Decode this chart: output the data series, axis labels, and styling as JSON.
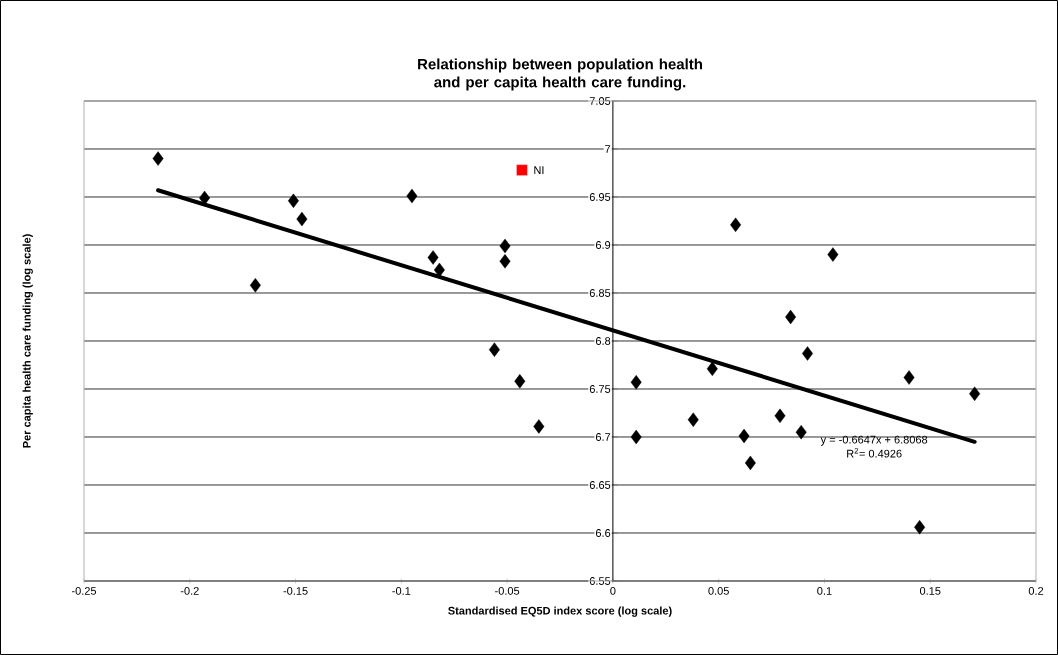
{
  "chart_data": {
    "type": "scatter",
    "title": "Relationship between population health and per capita health care funding.",
    "xlabel": "Standardised EQ5D index score (log scale)",
    "ylabel": "Per capita health care funding (log scale)",
    "xlim": [
      -0.25,
      0.2
    ],
    "xticks": [
      -0.25,
      -0.2,
      -0.15,
      -0.1,
      -0.05,
      0,
      0.05,
      0.1,
      0.15,
      0.2
    ],
    "ylim": [
      6.55,
      7.05
    ],
    "yticks": [
      6.55,
      6.6,
      6.65,
      6.7,
      6.75,
      6.8,
      6.85,
      6.9,
      6.95,
      7,
      7.05
    ],
    "grid": "y",
    "legend": false,
    "annotations": [
      "y = -0.6647x + 6.8068",
      "R$^{2}$= 0.4926"
    ],
    "series": [
      {
        "marker": "diamond",
        "color": "#000000",
        "x": [
          -0.215,
          -0.193,
          -0.169,
          -0.151,
          -0.147,
          -0.095,
          -0.085,
          -0.082,
          -0.056,
          -0.051,
          -0.051,
          -0.044,
          -0.035,
          0.011,
          0.011,
          0.038,
          0.047,
          0.058,
          0.062,
          0.065,
          0.079,
          0.084,
          0.089,
          0.092,
          0.104,
          0.14,
          0.145,
          0.171
        ],
        "values": [
          6.99,
          6.949,
          6.858,
          6.946,
          6.927,
          6.951,
          6.887,
          6.874,
          6.791,
          6.899,
          6.883,
          6.758,
          6.711,
          6.757,
          6.7,
          6.718,
          6.771,
          6.921,
          6.701,
          6.673,
          6.722,
          6.825,
          6.705,
          6.787,
          6.89,
          6.762,
          6.606,
          6.745
        ]
      },
      {
        "name": "NI",
        "marker": "square",
        "color": "#ff0000",
        "x": [
          -0.043
        ],
        "values": [
          6.978
        ]
      },
      {
        "type": "line",
        "marker": "none",
        "line_style": "solid",
        "color": "#000000",
        "x": [
          -0.215,
          0.171
        ],
        "values": [
          6.957,
          6.695
        ]
      }
    ]
  }
}
